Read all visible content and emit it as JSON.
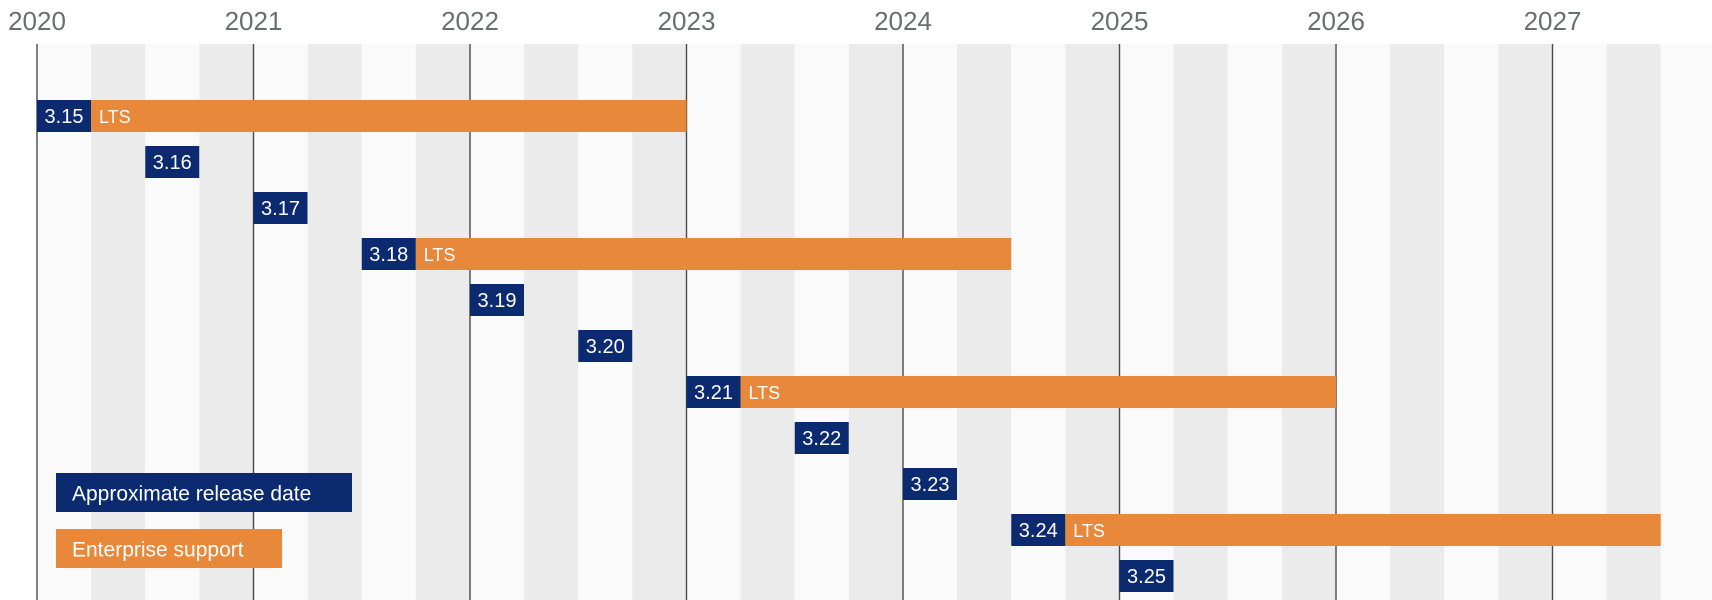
{
  "chart_data": {
    "type": "bar",
    "x_unit": "year",
    "x_range": [
      2020,
      2027.5
    ],
    "x_ticks": [
      2020,
      2021,
      2022,
      2023,
      2024,
      2025,
      2026,
      2027
    ],
    "grid": "quarter-year alternating bands",
    "colors": {
      "release": "#0b2a6f",
      "support": "#e8883a",
      "band_light": "#fafafa",
      "band_dark": "#ebebeb",
      "year_line": "#4a4a4a",
      "year_label": "#6a6e73"
    },
    "releases": [
      {
        "version": "3.15",
        "release": 2020.0,
        "support_end": 2023.0,
        "lts": "LTS"
      },
      {
        "version": "3.16",
        "release": 2020.5,
        "support_end": null,
        "lts": ""
      },
      {
        "version": "3.17",
        "release": 2021.0,
        "support_end": null,
        "lts": ""
      },
      {
        "version": "3.18",
        "release": 2021.5,
        "support_end": 2024.5,
        "lts": "LTS"
      },
      {
        "version": "3.19",
        "release": 2022.0,
        "support_end": null,
        "lts": ""
      },
      {
        "version": "3.20",
        "release": 2022.5,
        "support_end": null,
        "lts": ""
      },
      {
        "version": "3.21",
        "release": 2023.0,
        "support_end": 2026.0,
        "lts": "LTS"
      },
      {
        "version": "3.22",
        "release": 2023.5,
        "support_end": null,
        "lts": ""
      },
      {
        "version": "3.23",
        "release": 2024.0,
        "support_end": null,
        "lts": ""
      },
      {
        "version": "3.24",
        "release": 2024.5,
        "support_end": 2027.5,
        "lts": "LTS"
      },
      {
        "version": "3.25",
        "release": 2025.0,
        "support_end": null,
        "lts": ""
      }
    ],
    "legend": {
      "placement": "bottom-left",
      "items": [
        {
          "label": "Approximate release date",
          "color": "#0b2a6f"
        },
        {
          "label": "Enterprise support",
          "color": "#e8883a"
        }
      ]
    }
  }
}
